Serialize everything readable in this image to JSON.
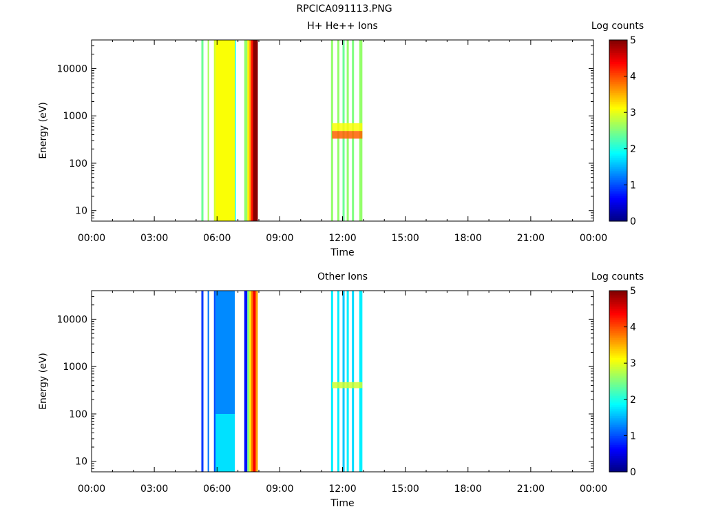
{
  "figure": {
    "title": "RPCICA091113.PNG"
  },
  "chart_data": [
    {
      "type": "heatmap",
      "title": "H+ He++ Ions",
      "xlabel": "Time",
      "ylabel": "Energy (eV)",
      "x_ticks": [
        "00:00",
        "03:00",
        "06:00",
        "09:00",
        "12:00",
        "15:00",
        "18:00",
        "21:00",
        "00:00"
      ],
      "y_scale": "log",
      "y_ticks": [
        "10",
        "100",
        "1000",
        "10000"
      ],
      "ylim": [
        6,
        40000
      ],
      "xlim_hours": [
        0,
        24
      ],
      "colorbar": {
        "label": "Log counts",
        "ticks": [
          "0",
          "1",
          "2",
          "3",
          "4",
          "5"
        ],
        "range": [
          0,
          5
        ],
        "colormap": "jet"
      },
      "columns": [
        {
          "t0": 5.25,
          "t1": 5.35,
          "value": 2.4
        },
        {
          "t0": 5.55,
          "t1": 5.62,
          "value": 2.7
        },
        {
          "t0": 5.85,
          "t1": 5.93,
          "value": 2.9
        },
        {
          "t0": 5.93,
          "t1": 6.85,
          "value": 3.1
        },
        {
          "t0": 6.85,
          "t1": 6.9,
          "value": 2.0
        },
        {
          "t0": 7.3,
          "t1": 7.45,
          "value": 2.6
        },
        {
          "t0": 7.45,
          "t1": 7.55,
          "value": 3.2
        },
        {
          "t0": 7.55,
          "t1": 7.63,
          "value": 3.7
        },
        {
          "t0": 7.63,
          "t1": 7.72,
          "value": 4.3
        },
        {
          "t0": 7.72,
          "t1": 7.95,
          "value": 4.95
        },
        {
          "t0": 11.45,
          "t1": 11.55,
          "value": 2.6
        },
        {
          "t0": 11.75,
          "t1": 11.85,
          "value": 2.6
        },
        {
          "t0": 12.0,
          "t1": 12.1,
          "value": 2.4
        },
        {
          "t0": 12.2,
          "t1": 12.3,
          "value": 2.6
        },
        {
          "t0": 12.45,
          "t1": 12.55,
          "value": 2.5
        },
        {
          "t0": 12.8,
          "t1": 12.95,
          "value": 2.6
        }
      ],
      "features": [
        {
          "t0": 11.5,
          "t1": 12.95,
          "e0": 330,
          "e1": 480,
          "value": 3.9
        },
        {
          "t0": 11.5,
          "t1": 12.95,
          "e0": 480,
          "e1": 700,
          "value": 3.1
        }
      ]
    },
    {
      "type": "heatmap",
      "title": "Other Ions",
      "xlabel": "Time",
      "ylabel": "Energy (eV)",
      "x_ticks": [
        "00:00",
        "03:00",
        "06:00",
        "09:00",
        "12:00",
        "15:00",
        "18:00",
        "21:00",
        "00:00"
      ],
      "y_scale": "log",
      "y_ticks": [
        "10",
        "100",
        "1000",
        "10000"
      ],
      "ylim": [
        6,
        40000
      ],
      "xlim_hours": [
        0,
        24
      ],
      "colorbar": {
        "label": "Log counts",
        "ticks": [
          "0",
          "1",
          "2",
          "3",
          "4",
          "5"
        ],
        "range": [
          0,
          5
        ],
        "colormap": "jet"
      },
      "columns": [
        {
          "t0": 5.25,
          "t1": 5.35,
          "value": 0.9
        },
        {
          "t0": 5.55,
          "t1": 5.62,
          "value": 1.2
        },
        {
          "t0": 5.85,
          "t1": 5.93,
          "value": 1.0
        },
        {
          "t0": 5.93,
          "t1": 6.85,
          "value": 1.3
        },
        {
          "t0": 7.3,
          "t1": 7.45,
          "value": 0.7
        },
        {
          "t0": 7.45,
          "t1": 7.55,
          "value": 2.5
        },
        {
          "t0": 7.55,
          "t1": 7.63,
          "value": 3.2
        },
        {
          "t0": 7.63,
          "t1": 7.72,
          "value": 3.8
        },
        {
          "t0": 7.72,
          "t1": 7.85,
          "value": 4.4
        },
        {
          "t0": 7.85,
          "t1": 7.95,
          "value": 3.6
        },
        {
          "t0": 11.45,
          "t1": 11.55,
          "value": 1.8
        },
        {
          "t0": 11.75,
          "t1": 11.85,
          "value": 1.8
        },
        {
          "t0": 12.0,
          "t1": 12.1,
          "value": 1.6
        },
        {
          "t0": 12.2,
          "t1": 12.3,
          "value": 1.8
        },
        {
          "t0": 12.45,
          "t1": 12.55,
          "value": 1.7
        },
        {
          "t0": 12.8,
          "t1": 12.95,
          "value": 1.8
        }
      ],
      "features": [
        {
          "t0": 5.93,
          "t1": 6.85,
          "e0": 6,
          "e1": 100,
          "value": 1.8
        },
        {
          "t0": 11.5,
          "t1": 12.95,
          "e0": 350,
          "e1": 470,
          "value": 2.9
        }
      ]
    }
  ]
}
